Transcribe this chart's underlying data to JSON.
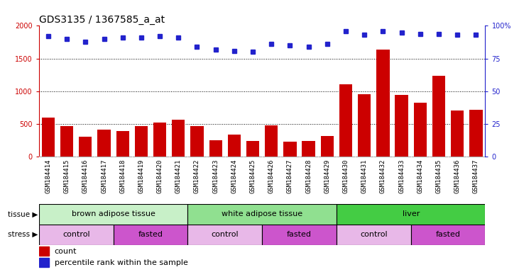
{
  "title": "GDS3135 / 1367585_a_at",
  "samples": [
    "GSM184414",
    "GSM184415",
    "GSM184416",
    "GSM184417",
    "GSM184418",
    "GSM184419",
    "GSM184420",
    "GSM184421",
    "GSM184422",
    "GSM184423",
    "GSM184424",
    "GSM184425",
    "GSM184426",
    "GSM184427",
    "GSM184428",
    "GSM184429",
    "GSM184430",
    "GSM184431",
    "GSM184432",
    "GSM184433",
    "GSM184434",
    "GSM184435",
    "GSM184436",
    "GSM184437"
  ],
  "counts": [
    600,
    460,
    300,
    410,
    390,
    460,
    520,
    560,
    460,
    250,
    330,
    240,
    480,
    230,
    240,
    310,
    1110,
    950,
    1640,
    940,
    820,
    1240,
    700,
    710
  ],
  "percentiles": [
    92,
    90,
    88,
    90,
    91,
    91,
    92,
    91,
    84,
    82,
    81,
    80,
    86,
    85,
    84,
    86,
    96,
    93,
    96,
    95,
    94,
    94,
    93,
    93
  ],
  "tissue_groups": [
    {
      "label": "brown adipose tissue",
      "start": 0,
      "end": 7,
      "color": "#c8f0c8"
    },
    {
      "label": "white adipose tissue",
      "start": 8,
      "end": 15,
      "color": "#90e090"
    },
    {
      "label": "liver",
      "start": 16,
      "end": 23,
      "color": "#44cc44"
    }
  ],
  "stress_groups": [
    {
      "label": "control",
      "start": 0,
      "end": 3,
      "color": "#e8b8e8"
    },
    {
      "label": "fasted",
      "start": 4,
      "end": 7,
      "color": "#cc55cc"
    },
    {
      "label": "control",
      "start": 8,
      "end": 11,
      "color": "#e8b8e8"
    },
    {
      "label": "fasted",
      "start": 12,
      "end": 15,
      "color": "#cc55cc"
    },
    {
      "label": "control",
      "start": 16,
      "end": 19,
      "color": "#e8b8e8"
    },
    {
      "label": "fasted",
      "start": 20,
      "end": 23,
      "color": "#cc55cc"
    }
  ],
  "bar_color": "#cc0000",
  "dot_color": "#2222cc",
  "ylim_left": [
    0,
    2000
  ],
  "ylim_right": [
    0,
    100
  ],
  "yticks_left": [
    0,
    500,
    1000,
    1500,
    2000
  ],
  "yticks_right": [
    0,
    25,
    50,
    75,
    100
  ],
  "ytick_labels_right": [
    "0",
    "25",
    "50",
    "75",
    "100%"
  ],
  "plot_bg": "#ffffff",
  "xtick_bg": "#d8d8d8",
  "title_fontsize": 10,
  "tick_fontsize": 7,
  "annotation_fontsize": 8,
  "legend_fontsize": 8
}
